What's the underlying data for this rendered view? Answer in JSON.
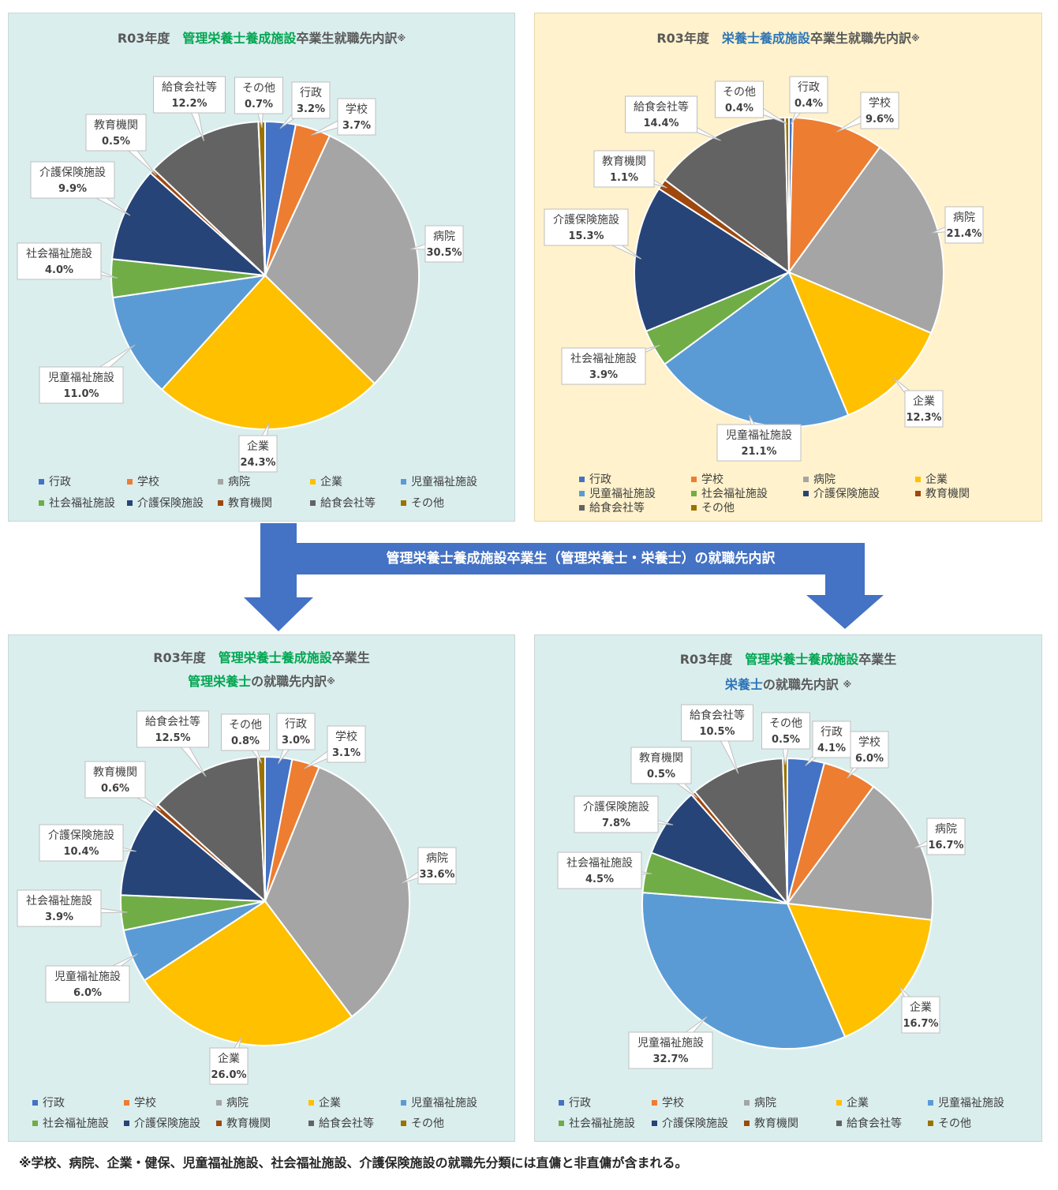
{
  "categories": [
    "行政",
    "学校",
    "病院",
    "企業",
    "児童福祉施設",
    "社会福祉施設",
    "介護保険施設",
    "教育機関",
    "給食会社等",
    "その他"
  ],
  "colors": [
    "#4472c4",
    "#ed7d31",
    "#a5a5a5",
    "#ffc000",
    "#5b9bd5",
    "#70ad47",
    "#264478",
    "#9e480e",
    "#636363",
    "#997300"
  ],
  "banner": "管理栄養士養成施設卒業生（管理栄養士・栄養士）の就職先内訳",
  "footnote": "※学校、病院、企業・健保、児童福祉施設、社会福祉施設、介護保険施設の就職先分類には直傭と非直傭が含まれる。",
  "charts": {
    "a": {
      "title": {
        "year": "R03年度　",
        "hl": "管理栄養士養成施設",
        "rest": "卒業生就職先内訳",
        "mark": "※"
      }
    },
    "b": {
      "title": {
        "year": "R03年度　",
        "hl": "栄養士養成施設",
        "rest": "卒業生就職先内訳",
        "mark": "※"
      }
    },
    "c": {
      "title1": {
        "year": "R03年度　",
        "hl": "管理栄養士養成施設",
        "rest": "卒業生"
      },
      "title2": {
        "hl": "管理栄養士",
        "rest": "の就職先内訳",
        "mark": "※"
      }
    },
    "d": {
      "title1": {
        "year": "R03年度　",
        "hl": "管理栄養士養成施設",
        "rest": "卒業生"
      },
      "title2": {
        "hl": "栄養士",
        "rest": "の就職先内訳 ",
        "mark": "※"
      }
    }
  },
  "chart_data": [
    {
      "id": "a",
      "type": "pie",
      "title": "R03年度　管理栄養士養成施設卒業生就職先内訳※",
      "categories": [
        "行政",
        "学校",
        "病院",
        "企業",
        "児童福祉施設",
        "社会福祉施設",
        "介護保険施設",
        "教育機関",
        "給食会社等",
        "その他"
      ],
      "values": [
        3.2,
        3.7,
        30.5,
        24.3,
        11.0,
        4.0,
        9.9,
        0.5,
        12.2,
        0.7
      ],
      "labels": [
        "3.2%",
        "3.7%",
        "30.5%",
        "24.3%",
        "11.0%",
        "4.0%",
        "9.9%",
        "0.5%",
        "12.2%",
        "0.7%"
      ],
      "legend": "bottom"
    },
    {
      "id": "b",
      "type": "pie",
      "title": "R03年度　栄養士養成施設卒業生就職先内訳※",
      "categories": [
        "行政",
        "学校",
        "病院",
        "企業",
        "児童福祉施設",
        "社会福祉施設",
        "介護保険施設",
        "教育機関",
        "給食会社等",
        "その他"
      ],
      "values": [
        0.4,
        9.6,
        21.4,
        12.3,
        21.1,
        3.9,
        15.3,
        1.1,
        14.4,
        0.4
      ],
      "labels": [
        "0.4%",
        "9.6%",
        "21.4%",
        "12.3%",
        "21.1%",
        "3.9%",
        "15.3%",
        "1.1%",
        "14.4%",
        "0.4%"
      ],
      "legend": "bottom"
    },
    {
      "id": "c",
      "type": "pie",
      "title": "R03年度　管理栄養士養成施設卒業生 管理栄養士の就職先内訳※",
      "categories": [
        "行政",
        "学校",
        "病院",
        "企業",
        "児童福祉施設",
        "社会福祉施設",
        "介護保険施設",
        "教育機関",
        "給食会社等",
        "その他"
      ],
      "values": [
        3.0,
        3.1,
        33.6,
        26.0,
        6.0,
        3.9,
        10.4,
        0.6,
        12.5,
        0.8
      ],
      "labels": [
        "3.0%",
        "3.1%",
        "33.6%",
        "26.0%",
        "6.0%",
        "3.9%",
        "10.4%",
        "0.6%",
        "12.5%",
        "0.8%"
      ],
      "legend": "bottom"
    },
    {
      "id": "d",
      "type": "pie",
      "title": "R03年度　管理栄養士養成施設卒業生 栄養士の就職先内訳 ※",
      "categories": [
        "行政",
        "学校",
        "病院",
        "企業",
        "児童福祉施設",
        "社会福祉施設",
        "介護保険施設",
        "教育機関",
        "給食会社等",
        "その他"
      ],
      "values": [
        4.1,
        6.0,
        16.7,
        16.7,
        32.7,
        4.5,
        7.8,
        0.5,
        10.5,
        0.5
      ],
      "labels": [
        "4.1%",
        "6.0%",
        "16.7%",
        "16.7%",
        "32.7%",
        "4.5%",
        "7.8%",
        "0.5%",
        "10.5%",
        "0.5%"
      ],
      "legend": "bottom"
    }
  ]
}
